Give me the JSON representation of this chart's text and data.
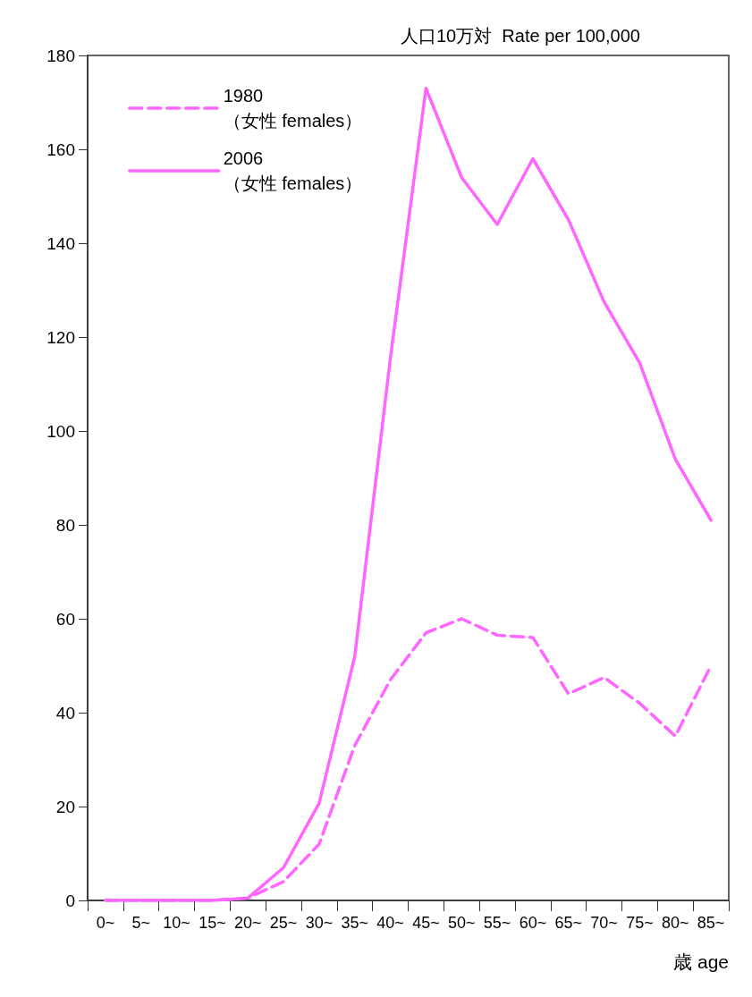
{
  "chart_data": {
    "type": "line",
    "ylabel": "人口10万対  Rate per 100,000",
    "xlabel": "歳 age",
    "categories": [
      "0~",
      "5~",
      "10~",
      "15~",
      "20~",
      "25~",
      "30~",
      "35~",
      "40~",
      "45~",
      "50~",
      "55~",
      "60~",
      "65~",
      "70~",
      "75~",
      "80~",
      "85~"
    ],
    "series": [
      {
        "name": "1980\n（女性 females）",
        "color": "#ff66ff",
        "line_style": "dashed",
        "values": [
          0,
          0,
          0,
          0,
          0.5,
          4,
          12,
          33,
          47,
          57,
          60,
          56.5,
          56,
          44,
          47.5,
          42,
          35,
          50
        ]
      },
      {
        "name": "2006\n（女性 females）",
        "color": "#ff66ff",
        "line_style": "solid",
        "values": [
          0,
          0,
          0,
          0,
          0.5,
          7,
          20.7,
          52,
          115.5,
          173,
          154,
          144,
          158,
          145,
          127.5,
          114.5,
          94,
          81
        ]
      }
    ],
    "ylim": [
      0,
      180
    ],
    "yticks": [
      0,
      20,
      40,
      60,
      80,
      100,
      120,
      140,
      160,
      180
    ],
    "grid": false,
    "legend": "top left",
    "marker": "none"
  }
}
